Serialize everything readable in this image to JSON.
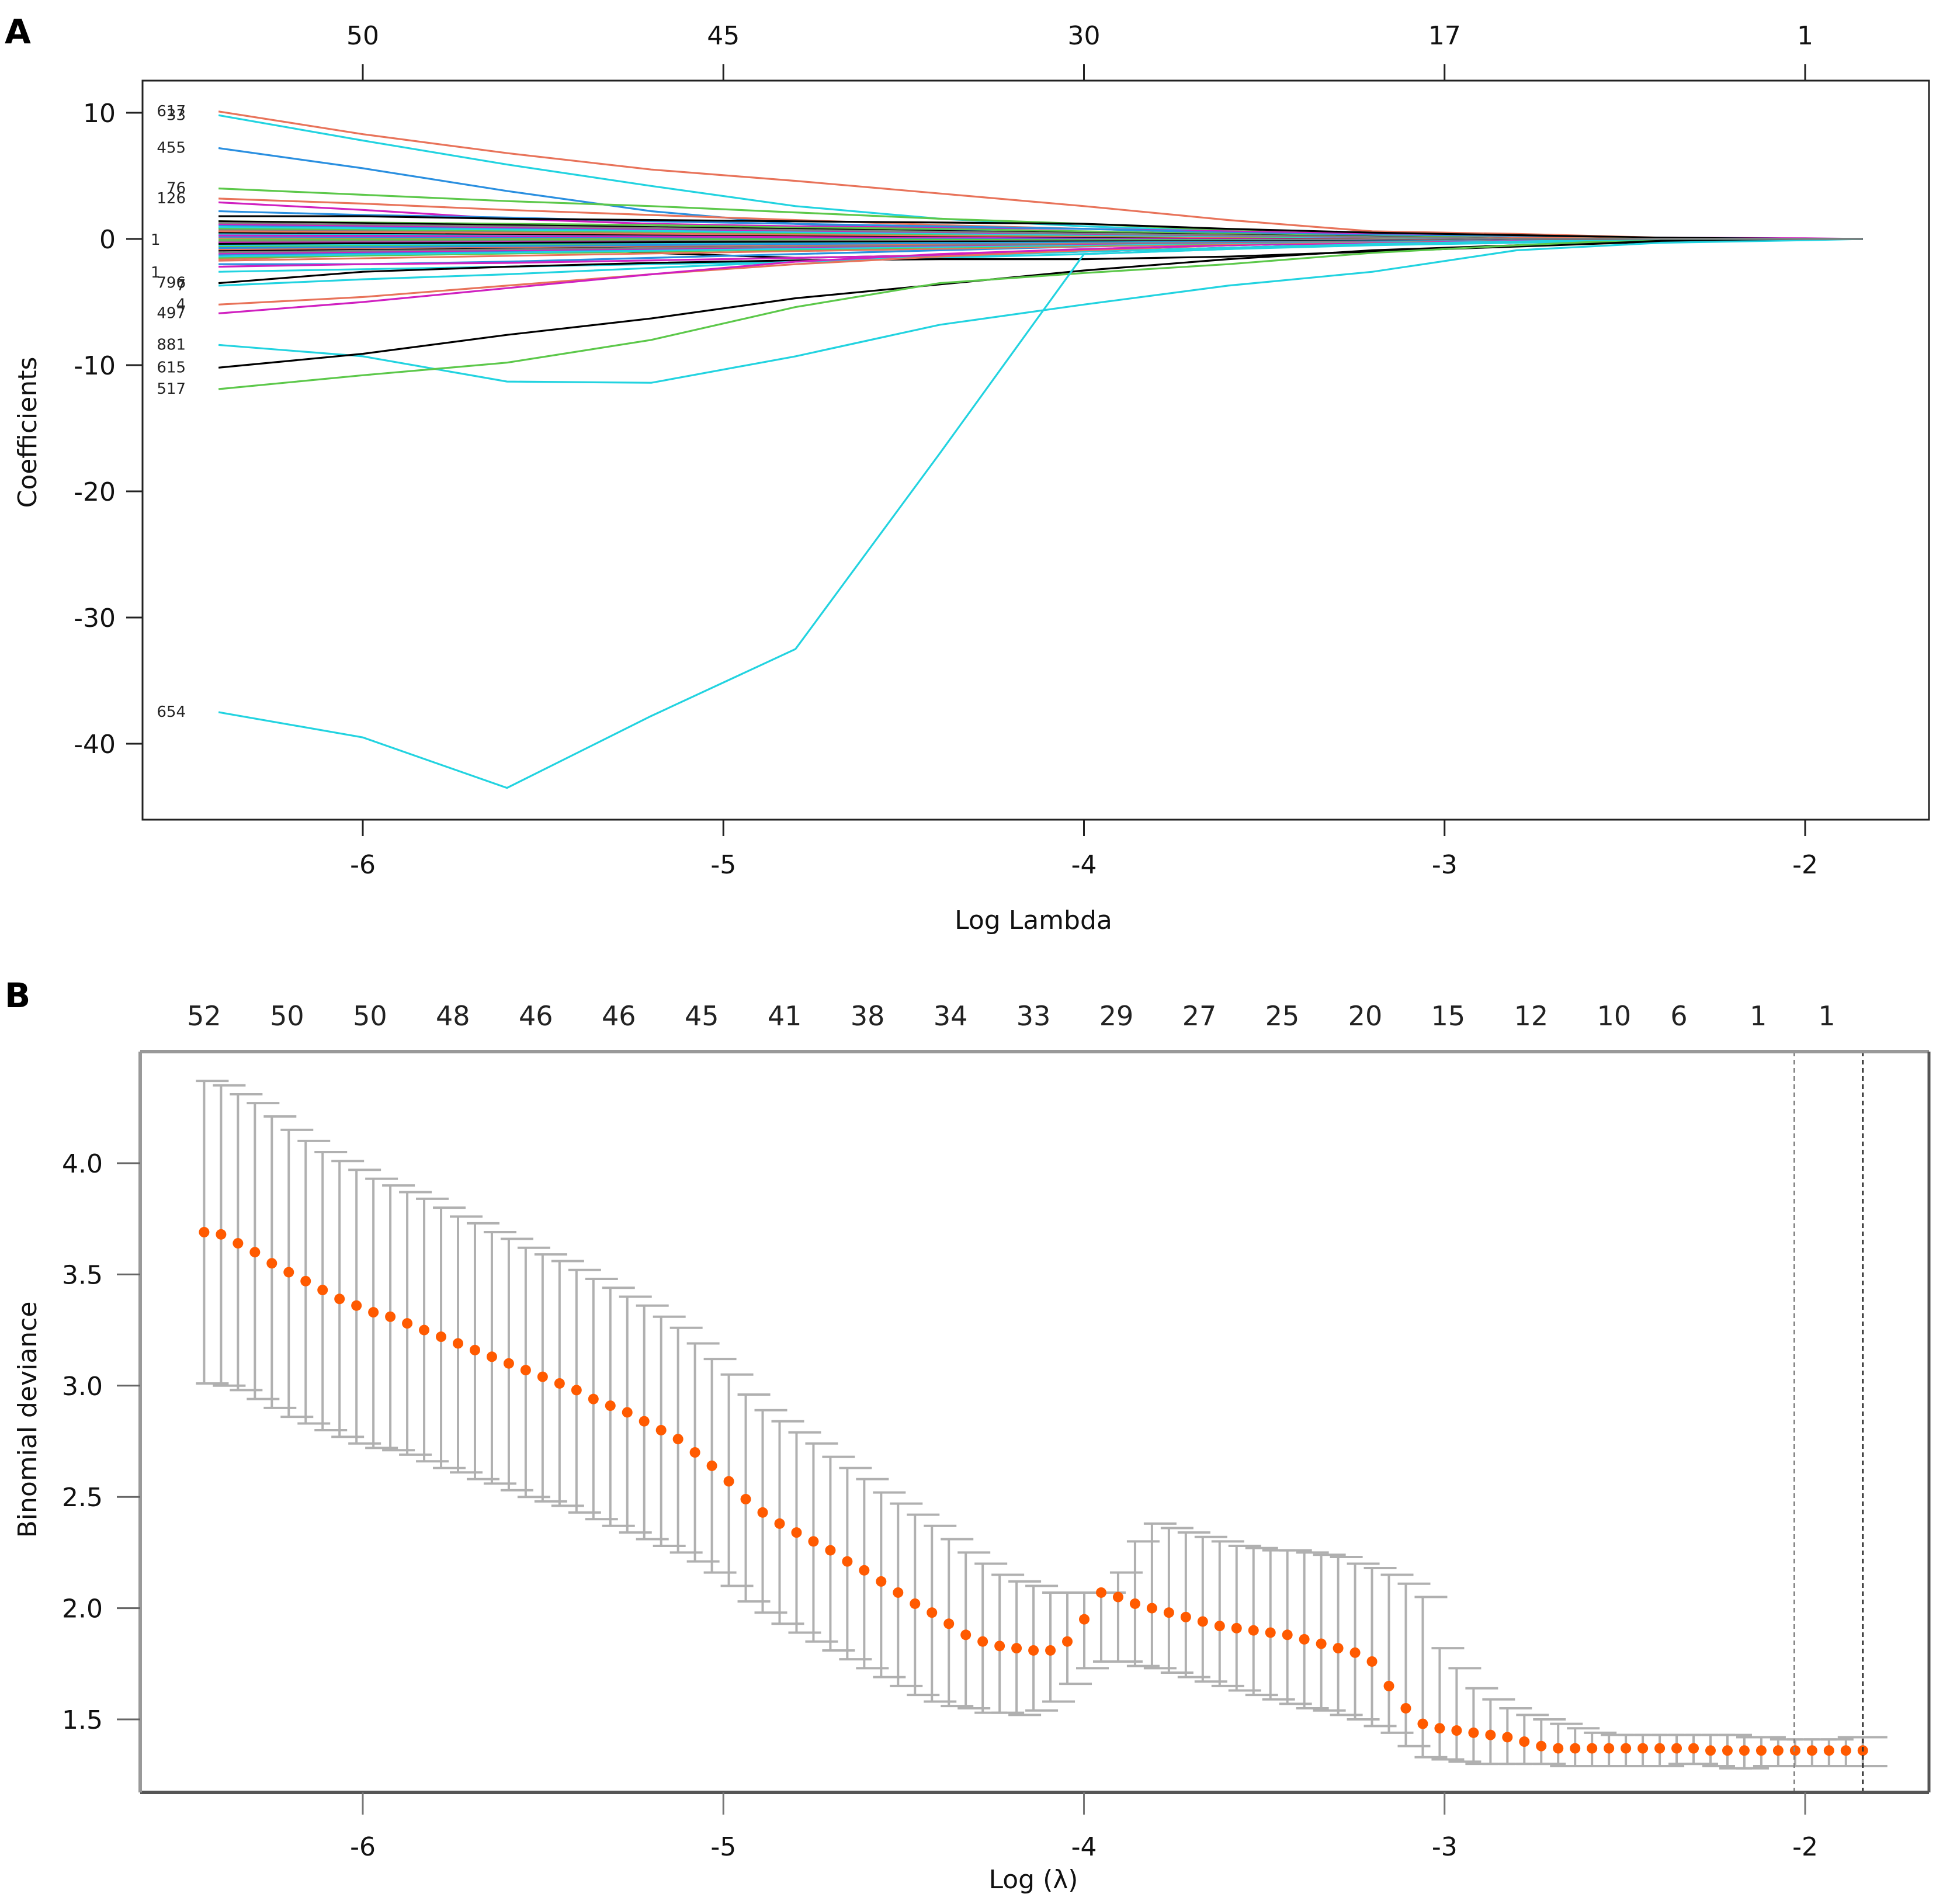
{
  "panels": {
    "a_letter": "A",
    "b_letter": "B"
  },
  "chart_data": [
    {
      "type": "line",
      "panel": "A",
      "title": "",
      "xlabel": "Log Lambda",
      "ylabel": "Coefficients",
      "xlim": [
        -6.62,
        -1.66
      ],
      "ylim": [
        -46,
        12.5
      ],
      "x_ticks": [
        -6,
        -5,
        -4,
        -3,
        -2
      ],
      "x_tick_labels": [
        "-6",
        "-5",
        "-4",
        "-3",
        "-2"
      ],
      "y_ticks": [
        10,
        0,
        -10,
        -20,
        -30,
        -40
      ],
      "y_tick_labels": [
        "10",
        "0",
        "-10",
        "-20",
        "-30",
        "-40"
      ],
      "top_axis_ticks": [
        -6,
        -5,
        -4,
        -3,
        -2
      ],
      "top_axis_labels": [
        "50",
        "45",
        "30",
        "17",
        "1"
      ],
      "grid": false,
      "x": [
        -6.4,
        -6.0,
        -5.6,
        -5.2,
        -4.8,
        -4.4,
        -4.0,
        -3.6,
        -3.2,
        -2.8,
        -2.4,
        -2.0,
        -1.84
      ],
      "series": [
        {
          "name": "617",
          "color": "#e8735a",
          "values": [
            10.1,
            8.3,
            6.8,
            5.5,
            4.6,
            3.6,
            2.6,
            1.5,
            0.6,
            0.4,
            0.1,
            0.0,
            0.0
          ]
        },
        {
          "name": "33",
          "color": "#22d3e0",
          "values": [
            9.8,
            7.8,
            5.9,
            4.2,
            2.6,
            1.6,
            1.0,
            0.6,
            0.3,
            0.1,
            0.0,
            0.0,
            0.0
          ]
        },
        {
          "name": "455",
          "color": "#2a8fe0",
          "values": [
            7.2,
            5.6,
            3.8,
            2.2,
            1.2,
            0.7,
            0.4,
            0.2,
            0.1,
            0.0,
            0.0,
            0.0,
            0.0
          ]
        },
        {
          "name": "76",
          "color": "#5cc84a",
          "values": [
            4.0,
            3.5,
            3.0,
            2.6,
            2.1,
            1.6,
            1.2,
            0.7,
            0.3,
            0.1,
            0.0,
            0.0,
            0.0
          ]
        },
        {
          "name": "126",
          "color": "#e8735a",
          "values": [
            3.2,
            2.8,
            2.3,
            1.9,
            1.5,
            1.1,
            0.8,
            0.5,
            0.3,
            0.2,
            0.1,
            0.0,
            0.0
          ]
        },
        {
          "name": "",
          "color": "#d020c0",
          "values": [
            2.9,
            2.3,
            1.6,
            1.2,
            1.0,
            0.9,
            0.8,
            0.6,
            0.4,
            0.2,
            0.1,
            0.05,
            0.0
          ]
        },
        {
          "name": "",
          "color": "#2a8fe0",
          "values": [
            2.2,
            1.9,
            1.7,
            1.4,
            1.2,
            1.0,
            0.8,
            0.5,
            0.3,
            0.2,
            0.1,
            0.0,
            0.0
          ]
        },
        {
          "name": "",
          "color": "#000000",
          "values": [
            1.8,
            1.8,
            1.6,
            1.5,
            1.4,
            1.3,
            1.2,
            0.8,
            0.5,
            0.3,
            0.1,
            0.0,
            0.0
          ]
        },
        {
          "name": "",
          "color": "#5cc84a",
          "values": [
            1.4,
            1.3,
            1.2,
            1.1,
            0.9,
            0.8,
            0.6,
            0.4,
            0.2,
            0.1,
            0.0,
            0.0,
            0.0
          ]
        },
        {
          "name": "",
          "color": "#000000",
          "values": [
            0.9,
            0.8,
            0.8,
            0.6,
            0.4,
            0.3,
            0.2,
            0.1,
            0.1,
            0.0,
            0.0,
            0.0,
            0.0
          ]
        },
        {
          "name": "",
          "color": "#e8735a",
          "values": [
            0.6,
            0.7,
            0.5,
            0.4,
            0.3,
            0.3,
            0.2,
            0.2,
            0.1,
            0.1,
            0.0,
            0.0,
            0.0
          ]
        },
        {
          "name": "",
          "color": "#5cc84a",
          "values": [
            0.3,
            0.4,
            0.5,
            0.4,
            0.3,
            0.2,
            0.1,
            0.1,
            0.1,
            0.0,
            0.0,
            0.0,
            0.0
          ]
        },
        {
          "name": "",
          "color": "#22d3e0",
          "values": [
            0.1,
            0.0,
            0.2,
            0.1,
            0.0,
            0.1,
            0.1,
            0.0,
            0.0,
            0.0,
            0.0,
            0.0,
            0.0
          ]
        },
        {
          "name": "",
          "color": "#2a8fe0",
          "values": [
            -0.3,
            -0.2,
            -0.4,
            -0.5,
            -0.4,
            -0.3,
            -0.2,
            -0.2,
            -0.1,
            0.0,
            0.0,
            0.0,
            0.0
          ]
        },
        {
          "name": "",
          "color": "#d020c0",
          "values": [
            -0.6,
            -0.8,
            -0.9,
            -1.0,
            -0.8,
            -0.6,
            -0.4,
            -0.3,
            -0.2,
            -0.1,
            0.0,
            0.0,
            0.0
          ]
        },
        {
          "name": "",
          "color": "#000000",
          "values": [
            -0.3,
            -0.4,
            -0.6,
            -1.1,
            -1.5,
            -1.3,
            -1.0,
            -0.7,
            -0.4,
            -0.2,
            -0.1,
            0.0,
            0.0
          ]
        },
        {
          "name": "",
          "color": "#e8735a",
          "values": [
            -1.6,
            -1.3,
            -1.0,
            -0.8,
            -0.6,
            -0.4,
            -0.3,
            -0.2,
            -0.1,
            0.0,
            0.0,
            0.0,
            0.0
          ]
        },
        {
          "name": "",
          "color": "#2a8fe0",
          "values": [
            -2.0,
            -2.0,
            -1.8,
            -1.5,
            -1.2,
            -0.9,
            -0.6,
            -0.4,
            -0.2,
            -0.1,
            0.0,
            0.0,
            0.0
          ]
        },
        {
          "name": "",
          "color": "#d020c0",
          "values": [
            -2.2,
            -2.0,
            -1.9,
            -1.7,
            -1.5,
            -1.3,
            -1.0,
            -0.7,
            -0.4,
            -0.2,
            -0.1,
            0.0,
            0.0
          ]
        },
        {
          "name": "",
          "color": "#22d3e0",
          "values": [
            -2.6,
            -2.4,
            -2.2,
            -2.0,
            -1.8,
            -1.5,
            -1.2,
            -0.8,
            -0.5,
            -0.3,
            -0.1,
            0.0,
            0.0
          ]
        },
        {
          "name": "796",
          "color": "#000000",
          "values": [
            -3.5,
            -2.6,
            -2.2,
            -1.9,
            -1.7,
            -1.6,
            -1.6,
            -1.4,
            -1.0,
            -0.6,
            -0.2,
            0.0,
            0.0
          ]
        },
        {
          "name": "7",
          "color": "#22d3e0",
          "values": [
            -3.7,
            -3.2,
            -2.8,
            -2.3,
            -1.8,
            -1.4,
            -1.0,
            -0.7,
            -0.4,
            -0.2,
            -0.1,
            0.0,
            0.0
          ]
        },
        {
          "name": "4",
          "color": "#e8735a",
          "values": [
            -5.2,
            -4.6,
            -3.7,
            -2.8,
            -2.0,
            -1.4,
            -0.9,
            -0.5,
            -0.2,
            -0.1,
            0.0,
            0.0,
            0.0
          ]
        },
        {
          "name": "497",
          "color": "#d020c0",
          "values": [
            -5.9,
            -5.0,
            -3.9,
            -2.8,
            -1.8,
            -1.2,
            -0.8,
            -0.5,
            -0.3,
            -0.1,
            0.0,
            0.0,
            0.0
          ]
        },
        {
          "name": "881",
          "color": "#22d3e0",
          "values": [
            -8.4,
            -9.3,
            -11.3,
            -11.4,
            -9.3,
            -6.8,
            -5.2,
            -3.7,
            -2.6,
            -0.9,
            -0.3,
            -0.1,
            0.0
          ]
        },
        {
          "name": "615",
          "color": "#000000",
          "values": [
            -10.2,
            -9.1,
            -7.6,
            -6.3,
            -4.7,
            -3.6,
            -2.5,
            -1.6,
            -0.9,
            -0.5,
            -0.1,
            0.0,
            0.0
          ]
        },
        {
          "name": "517",
          "color": "#5cc84a",
          "values": [
            -11.9,
            -10.8,
            -9.8,
            -8.0,
            -5.4,
            -3.5,
            -2.7,
            -2.0,
            -1.1,
            -0.5,
            0.0,
            0.0,
            0.0
          ]
        },
        {
          "name": "654",
          "color": "#22d3e0",
          "values": [
            -37.5,
            -39.5,
            -43.5,
            -37.8,
            -32.5,
            -17.0,
            -1.2,
            -0.8,
            -0.4,
            -0.2,
            0.0,
            0.0,
            0.0
          ]
        }
      ],
      "crowded_label_markers": [
        "1",
        "1"
      ]
    },
    {
      "type": "scatter",
      "panel": "B",
      "title": "",
      "xlabel": "Log (λ)",
      "ylabel": "Binomial deviance",
      "xlim": [
        -6.62,
        -1.66
      ],
      "ylim": [
        1.16,
        4.66
      ],
      "x_ticks": [
        -6,
        -5,
        -4,
        -3,
        -2
      ],
      "x_tick_labels": [
        "-6",
        "-5",
        "-4",
        "-3",
        "-2"
      ],
      "y_ticks": [
        4.0,
        3.5,
        3.0,
        2.5,
        2.0,
        1.5
      ],
      "y_tick_labels": [
        "4.0",
        "3.5",
        "3.0",
        "2.5",
        "2.0",
        "1.5"
      ],
      "top_axis_labels": [
        "52",
        "50",
        "50",
        "48",
        "46",
        "46",
        "45",
        "41",
        "38",
        "34",
        "33",
        "29",
        "27",
        "25",
        "20",
        "15",
        "12",
        "10",
        "6",
        "1",
        "1"
      ],
      "top_axis_positions": [
        -6.44,
        -6.21,
        -5.98,
        -5.75,
        -5.52,
        -5.29,
        -5.06,
        -4.83,
        -4.6,
        -4.37,
        -4.14,
        -3.91,
        -3.68,
        -3.45,
        -3.22,
        -2.99,
        -2.76,
        -2.53,
        -2.35,
        -2.13,
        -1.94
      ],
      "lambda_min_log": -2.03,
      "lambda_1se_log": -1.84,
      "grid": false,
      "point_color": "#ff5a00",
      "errorbar_color": "#b0b0b0",
      "mean": [
        3.69,
        3.68,
        3.64,
        3.6,
        3.55,
        3.51,
        3.47,
        3.43,
        3.39,
        3.36,
        3.33,
        3.31,
        3.28,
        3.25,
        3.22,
        3.19,
        3.16,
        3.13,
        3.1,
        3.07,
        3.04,
        3.01,
        2.98,
        2.94,
        2.91,
        2.88,
        2.84,
        2.8,
        2.76,
        2.7,
        2.64,
        2.57,
        2.49,
        2.43,
        2.38,
        2.34,
        2.3,
        2.26,
        2.21,
        2.17,
        2.12,
        2.07,
        2.02,
        1.98,
        1.93,
        1.88,
        1.85,
        1.83,
        1.82,
        1.81,
        1.81,
        1.85,
        1.95,
        2.07,
        2.05,
        2.02,
        2.0,
        1.98,
        1.96,
        1.94,
        1.92,
        1.91,
        1.9,
        1.89,
        1.88,
        1.86,
        1.84,
        1.82,
        1.8,
        1.76,
        1.65,
        1.55,
        1.48,
        1.46,
        1.45,
        1.44,
        1.43,
        1.42,
        1.4,
        1.38,
        1.37,
        1.37,
        1.37,
        1.37,
        1.37,
        1.37,
        1.37,
        1.37,
        1.37,
        1.36,
        1.36,
        1.36,
        1.36,
        1.36,
        1.36,
        1.36,
        1.36,
        1.36,
        1.36
      ],
      "upper": [
        4.37,
        4.35,
        4.31,
        4.27,
        4.21,
        4.15,
        4.1,
        4.05,
        4.01,
        3.97,
        3.93,
        3.9,
        3.87,
        3.84,
        3.8,
        3.76,
        3.73,
        3.69,
        3.66,
        3.62,
        3.59,
        3.56,
        3.52,
        3.48,
        3.44,
        3.4,
        3.36,
        3.31,
        3.26,
        3.19,
        3.12,
        3.05,
        2.96,
        2.89,
        2.84,
        2.79,
        2.74,
        2.68,
        2.63,
        2.58,
        2.52,
        2.47,
        2.42,
        2.37,
        2.31,
        2.25,
        2.2,
        2.15,
        2.12,
        2.1,
        2.07,
        2.07,
        2.07,
        2.07,
        2.16,
        2.3,
        2.38,
        2.36,
        2.34,
        2.32,
        2.3,
        2.28,
        2.27,
        2.26,
        2.26,
        2.25,
        2.24,
        2.23,
        2.2,
        2.18,
        2.15,
        2.11,
        2.05,
        1.82,
        1.73,
        1.64,
        1.59,
        1.55,
        1.52,
        1.5,
        1.48,
        1.46,
        1.44,
        1.43,
        1.43,
        1.43,
        1.43,
        1.43,
        1.43,
        1.43,
        1.43,
        1.42,
        1.42,
        1.41,
        1.41,
        1.41,
        1.41,
        1.42,
        1.42
      ],
      "lower": [
        3.01,
        3.0,
        2.98,
        2.94,
        2.9,
        2.86,
        2.83,
        2.8,
        2.77,
        2.74,
        2.72,
        2.71,
        2.69,
        2.66,
        2.63,
        2.61,
        2.58,
        2.56,
        2.53,
        2.5,
        2.48,
        2.46,
        2.43,
        2.4,
        2.37,
        2.34,
        2.31,
        2.28,
        2.25,
        2.21,
        2.16,
        2.1,
        2.03,
        1.98,
        1.93,
        1.89,
        1.85,
        1.81,
        1.77,
        1.73,
        1.69,
        1.65,
        1.61,
        1.58,
        1.56,
        1.55,
        1.53,
        1.53,
        1.52,
        1.54,
        1.58,
        1.66,
        1.73,
        1.76,
        1.76,
        1.74,
        1.73,
        1.71,
        1.69,
        1.67,
        1.65,
        1.63,
        1.61,
        1.59,
        1.57,
        1.55,
        1.54,
        1.52,
        1.5,
        1.47,
        1.44,
        1.38,
        1.33,
        1.32,
        1.31,
        1.3,
        1.3,
        1.3,
        1.3,
        1.3,
        1.29,
        1.29,
        1.29,
        1.29,
        1.29,
        1.29,
        1.29,
        1.3,
        1.3,
        1.29,
        1.28,
        1.28,
        1.29,
        1.29,
        1.29,
        1.29,
        1.29,
        1.29,
        1.29
      ],
      "x_start": -6.44,
      "x_end": -1.84
    }
  ]
}
